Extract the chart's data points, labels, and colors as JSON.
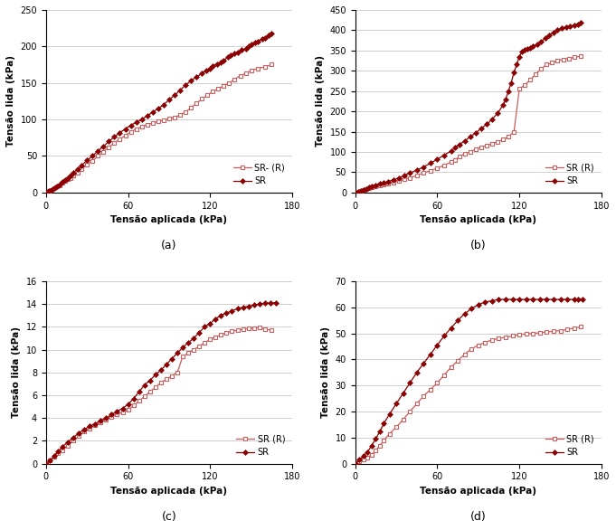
{
  "subplots": [
    {
      "label": "(a)",
      "ylabel": "Tensão lida (kPa)",
      "xlabel": "Tensão aplicada (kPa)",
      "xlim": [
        0,
        180
      ],
      "ylim": [
        0,
        250
      ],
      "yticks": [
        0,
        50,
        100,
        150,
        200,
        250
      ],
      "xticks": [
        0,
        60,
        120,
        180
      ],
      "legend1": "SR- (R)",
      "legend2": "SR",
      "legend_loc": "lower right",
      "sr_r_x": [
        0,
        2,
        4,
        6,
        8,
        10,
        12,
        14,
        16,
        18,
        20,
        23,
        26,
        30,
        34,
        38,
        42,
        46,
        50,
        54,
        58,
        62,
        66,
        70,
        74,
        78,
        82,
        86,
        90,
        94,
        98,
        102,
        106,
        110,
        114,
        118,
        122,
        126,
        130,
        134,
        138,
        142,
        146,
        150,
        155,
        160,
        165
      ],
      "sr_r_y": [
        0,
        2,
        4,
        6,
        8,
        10,
        13,
        16,
        18,
        20,
        23,
        27,
        32,
        38,
        43,
        50,
        56,
        62,
        68,
        73,
        78,
        83,
        87,
        90,
        93,
        95,
        97,
        99,
        101,
        103,
        106,
        110,
        116,
        122,
        128,
        133,
        138,
        142,
        146,
        150,
        155,
        160,
        163,
        167,
        170,
        172,
        175
      ],
      "sr_x": [
        0,
        2,
        4,
        6,
        8,
        10,
        12,
        14,
        16,
        18,
        20,
        23,
        26,
        30,
        34,
        38,
        42,
        46,
        50,
        54,
        58,
        62,
        66,
        70,
        74,
        78,
        82,
        86,
        90,
        94,
        98,
        102,
        106,
        110,
        114,
        117,
        120,
        122,
        125,
        128,
        130,
        133,
        135,
        138,
        140,
        143,
        146,
        148,
        150,
        153,
        155,
        158,
        160,
        163,
        165
      ],
      "sr_y": [
        0,
        2,
        4,
        6,
        8,
        11,
        14,
        17,
        20,
        23,
        27,
        32,
        37,
        44,
        50,
        57,
        63,
        70,
        76,
        82,
        87,
        92,
        96,
        100,
        105,
        110,
        115,
        120,
        127,
        133,
        140,
        147,
        153,
        158,
        163,
        167,
        170,
        173,
        176,
        178,
        181,
        185,
        188,
        190,
        192,
        195,
        197,
        200,
        203,
        205,
        207,
        210,
        212,
        215,
        218
      ]
    },
    {
      "label": "(b)",
      "ylabel": "Tensão lida (kPa)",
      "xlabel": "Tensão aplicada (kPa)",
      "xlim": [
        0,
        180
      ],
      "ylim": [
        0,
        450
      ],
      "yticks": [
        0,
        50,
        100,
        150,
        200,
        250,
        300,
        350,
        400,
        450
      ],
      "xticks": [
        0,
        60,
        120,
        180
      ],
      "legend1": "SR (R)",
      "legend2": "SR",
      "legend_loc": "lower right",
      "sr_r_x": [
        0,
        2,
        4,
        6,
        8,
        10,
        12,
        15,
        18,
        21,
        24,
        28,
        32,
        36,
        40,
        45,
        50,
        55,
        60,
        65,
        70,
        73,
        76,
        80,
        84,
        88,
        92,
        96,
        100,
        104,
        108,
        112,
        116,
        120,
        124,
        128,
        132,
        136,
        140,
        144,
        148,
        152,
        156,
        160,
        165
      ],
      "sr_r_y": [
        0,
        2,
        4,
        6,
        8,
        10,
        12,
        15,
        18,
        20,
        22,
        25,
        28,
        32,
        36,
        42,
        48,
        54,
        60,
        67,
        75,
        80,
        88,
        95,
        100,
        107,
        112,
        116,
        120,
        125,
        130,
        138,
        148,
        255,
        265,
        278,
        292,
        305,
        315,
        320,
        325,
        328,
        330,
        333,
        336
      ],
      "sr_x": [
        0,
        2,
        4,
        6,
        8,
        10,
        12,
        15,
        18,
        21,
        24,
        28,
        32,
        36,
        40,
        45,
        50,
        55,
        60,
        65,
        70,
        73,
        76,
        80,
        84,
        88,
        92,
        96,
        100,
        104,
        108,
        110,
        112,
        114,
        116,
        118,
        120,
        122,
        124,
        126,
        128,
        130,
        133,
        136,
        139,
        142,
        145,
        148,
        151,
        154,
        157,
        160,
        163,
        165
      ],
      "sr_y": [
        0,
        2,
        4,
        7,
        9,
        12,
        15,
        18,
        21,
        24,
        27,
        31,
        36,
        42,
        48,
        55,
        63,
        72,
        82,
        92,
        102,
        110,
        118,
        127,
        137,
        147,
        157,
        168,
        180,
        195,
        215,
        230,
        250,
        270,
        295,
        315,
        335,
        348,
        352,
        355,
        357,
        360,
        365,
        372,
        380,
        388,
        395,
        400,
        405,
        408,
        410,
        412,
        415,
        418
      ]
    },
    {
      "label": "(c)",
      "ylabel": "Tensão lida (kPa)",
      "xlabel": "Tensão aplicada (kPa)",
      "xlim": [
        0,
        180
      ],
      "ylim": [
        0,
        16
      ],
      "yticks": [
        0,
        2,
        4,
        6,
        8,
        10,
        12,
        14,
        16
      ],
      "xticks": [
        0,
        60,
        120,
        180
      ],
      "legend1": "SR (R)",
      "legend2": "SR",
      "legend_loc": "lower right",
      "sr_r_x": [
        0,
        3,
        6,
        9,
        12,
        16,
        20,
        24,
        28,
        32,
        36,
        40,
        44,
        48,
        52,
        56,
        60,
        64,
        68,
        72,
        76,
        80,
        84,
        88,
        92,
        96,
        100,
        104,
        108,
        112,
        116,
        120,
        124,
        128,
        132,
        136,
        140,
        144,
        148,
        152,
        156,
        160,
        165
      ],
      "sr_r_y": [
        0,
        0.3,
        0.6,
        0.9,
        1.2,
        1.6,
        2.0,
        2.4,
        2.8,
        3.1,
        3.4,
        3.6,
        3.9,
        4.1,
        4.3,
        4.5,
        4.7,
        5.1,
        5.5,
        5.9,
        6.3,
        6.7,
        7.1,
        7.4,
        7.7,
        8.0,
        9.4,
        9.7,
        10.0,
        10.3,
        10.6,
        10.9,
        11.1,
        11.3,
        11.5,
        11.6,
        11.7,
        11.8,
        11.85,
        11.9,
        11.95,
        11.8,
        11.7
      ],
      "sr_x": [
        0,
        3,
        6,
        9,
        12,
        16,
        20,
        24,
        28,
        32,
        36,
        40,
        44,
        48,
        52,
        56,
        60,
        64,
        68,
        72,
        76,
        80,
        84,
        88,
        92,
        96,
        100,
        104,
        108,
        112,
        116,
        120,
        124,
        128,
        132,
        136,
        140,
        144,
        148,
        152,
        156,
        160,
        164,
        168
      ],
      "sr_y": [
        0,
        0.3,
        0.7,
        1.1,
        1.5,
        1.9,
        2.3,
        2.7,
        3.0,
        3.3,
        3.5,
        3.8,
        4.0,
        4.3,
        4.6,
        4.85,
        5.2,
        5.7,
        6.3,
        6.9,
        7.3,
        7.8,
        8.2,
        8.7,
        9.2,
        9.7,
        10.2,
        10.6,
        11.0,
        11.5,
        12.0,
        12.3,
        12.7,
        13.0,
        13.2,
        13.4,
        13.6,
        13.7,
        13.8,
        13.9,
        14.0,
        14.05,
        14.1,
        14.1
      ]
    },
    {
      "label": "(d)",
      "ylabel": "Tensão lida (kPa)",
      "xlabel": "Tensão aplicada (kPa)",
      "xlim": [
        0,
        180
      ],
      "ylim": [
        0,
        70
      ],
      "yticks": [
        0,
        10,
        20,
        30,
        40,
        50,
        60,
        70
      ],
      "xticks": [
        0,
        60,
        120,
        180
      ],
      "legend1": "SR (R)",
      "legend2": "SR",
      "legend_loc": "lower right",
      "sr_r_x": [
        0,
        3,
        6,
        9,
        12,
        15,
        18,
        21,
        25,
        30,
        35,
        40,
        45,
        50,
        55,
        60,
        65,
        70,
        75,
        80,
        85,
        90,
        95,
        100,
        105,
        110,
        115,
        120,
        125,
        130,
        135,
        140,
        145,
        150,
        155,
        160,
        165
      ],
      "sr_r_y": [
        0,
        0.8,
        1.5,
        2.5,
        3.5,
        5.0,
        7.0,
        9.0,
        11.5,
        14.0,
        17.0,
        20.0,
        23.0,
        26.0,
        28.5,
        31.0,
        34.0,
        37.0,
        39.5,
        42.0,
        44.0,
        45.5,
        46.5,
        47.5,
        48.0,
        48.5,
        49.0,
        49.5,
        49.8,
        50.0,
        50.2,
        50.5,
        50.8,
        51.0,
        51.5,
        52.0,
        52.5
      ],
      "sr_x": [
        0,
        3,
        6,
        9,
        12,
        15,
        18,
        21,
        25,
        30,
        35,
        40,
        45,
        50,
        55,
        60,
        65,
        70,
        75,
        80,
        85,
        90,
        95,
        100,
        105,
        110,
        115,
        120,
        125,
        130,
        135,
        140,
        145,
        150,
        155,
        160,
        163,
        166
      ],
      "sr_y": [
        0,
        1.5,
        3.0,
        4.5,
        7.0,
        9.5,
        12.5,
        15.5,
        19.0,
        23.0,
        27.0,
        31.0,
        35.0,
        38.5,
        42.0,
        45.5,
        49.0,
        52.0,
        55.0,
        57.5,
        59.5,
        61.0,
        62.0,
        62.5,
        63.0,
        63.0,
        63.0,
        63.0,
        63.0,
        63.0,
        63.0,
        63.0,
        63.0,
        63.0,
        63.0,
        63.0,
        63.0,
        63.0
      ]
    }
  ],
  "color_sr_r": "#cd5c5c",
  "color_sr": "#8b0000",
  "bg_color": "#ffffff",
  "grid_color": "#c8c8c8"
}
